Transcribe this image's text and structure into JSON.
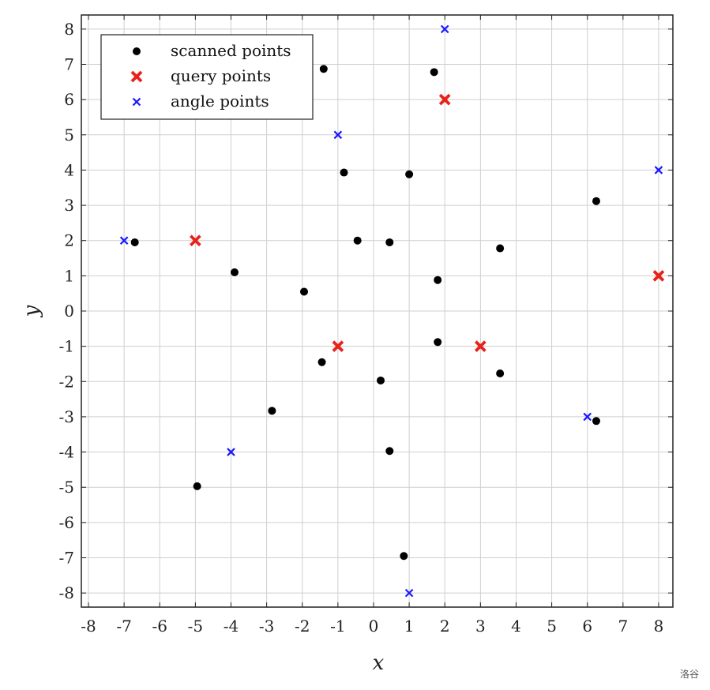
{
  "chart_data": {
    "type": "scatter",
    "title": "",
    "xlabel": "x",
    "ylabel": "y",
    "xlim": [
      -8.2,
      8.4
    ],
    "ylim": [
      -8.4,
      8.4
    ],
    "xticks": [
      -8,
      -7,
      -6,
      -5,
      -4,
      -3,
      -2,
      -1,
      0,
      1,
      2,
      3,
      4,
      5,
      6,
      7,
      8
    ],
    "yticks": [
      -8,
      -7,
      -6,
      -5,
      -4,
      -3,
      -2,
      -1,
      0,
      1,
      2,
      3,
      4,
      5,
      6,
      7,
      8
    ],
    "grid": true,
    "legend_position": "top-left",
    "series": [
      {
        "name": "scanned points",
        "marker": "dot",
        "color": "#000000",
        "points": [
          [
            -1.4,
            6.87
          ],
          [
            1.7,
            6.78
          ],
          [
            -0.83,
            3.93
          ],
          [
            1.0,
            3.88
          ],
          [
            6.25,
            3.12
          ],
          [
            -6.7,
            1.95
          ],
          [
            -0.45,
            2.0
          ],
          [
            0.45,
            1.95
          ],
          [
            3.55,
            1.78
          ],
          [
            -3.9,
            1.1
          ],
          [
            1.8,
            0.88
          ],
          [
            -1.95,
            0.55
          ],
          [
            1.8,
            -0.88
          ],
          [
            -1.45,
            -1.45
          ],
          [
            0.2,
            -1.97
          ],
          [
            3.55,
            -1.77
          ],
          [
            -2.85,
            -2.83
          ],
          [
            6.25,
            -3.12
          ],
          [
            0.45,
            -3.97
          ],
          [
            -4.95,
            -4.97
          ],
          [
            0.85,
            -6.95
          ]
        ]
      },
      {
        "name": "query points",
        "marker": "x-bold",
        "color": "#e8221b",
        "points": [
          [
            2,
            6
          ],
          [
            -5,
            2
          ],
          [
            8,
            1
          ],
          [
            -1,
            -1
          ],
          [
            3,
            -1
          ]
        ]
      },
      {
        "name": "angle points",
        "marker": "x-small",
        "color": "#1a1aff",
        "points": [
          [
            2,
            8
          ],
          [
            -1,
            5
          ],
          [
            8,
            4
          ],
          [
            -7,
            2
          ],
          [
            6,
            -3
          ],
          [
            -4,
            -4
          ],
          [
            1,
            -8
          ]
        ]
      }
    ]
  },
  "watermark": "洛谷"
}
